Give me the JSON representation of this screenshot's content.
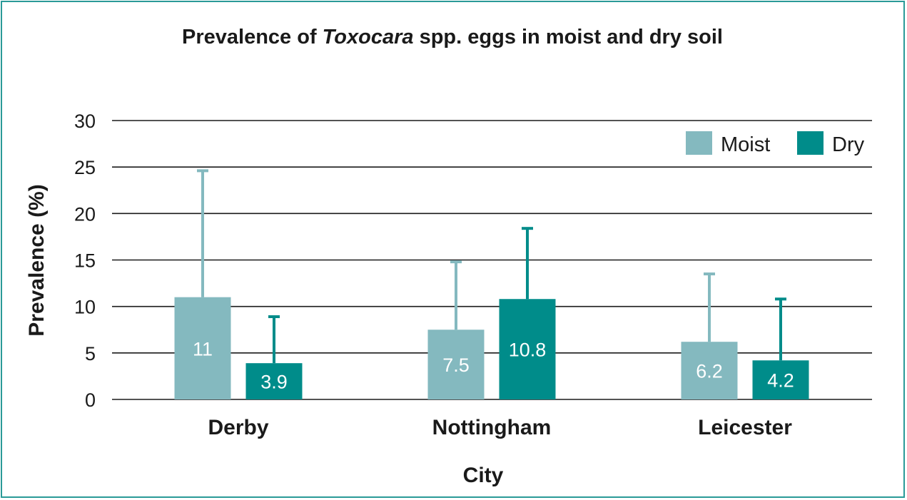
{
  "chart_data": {
    "type": "bar",
    "title_parts": [
      "Prevalence of ",
      "Toxocara",
      " spp. eggs in moist and dry soil"
    ],
    "xlabel": "City",
    "ylabel": "Prevalence (%)",
    "ylim": [
      0,
      30
    ],
    "yticks": [
      0,
      5,
      10,
      15,
      20,
      25,
      30
    ],
    "grid": true,
    "legend_position": "top-right",
    "categories": [
      "Derby",
      "Nottingham",
      "Leicester"
    ],
    "series": [
      {
        "name": "Moist",
        "color": "#84b9bf",
        "values": [
          11,
          7.5,
          6.2
        ],
        "labels": [
          "11",
          "7.5",
          "6.2"
        ],
        "error_upper": [
          24.6,
          14.8,
          13.5
        ]
      },
      {
        "name": "Dry",
        "color": "#008c8a",
        "values": [
          3.9,
          10.8,
          4.2
        ],
        "labels": [
          "3.9",
          "10.8",
          "4.2"
        ],
        "error_upper": [
          8.9,
          18.4,
          10.8
        ]
      }
    ]
  }
}
